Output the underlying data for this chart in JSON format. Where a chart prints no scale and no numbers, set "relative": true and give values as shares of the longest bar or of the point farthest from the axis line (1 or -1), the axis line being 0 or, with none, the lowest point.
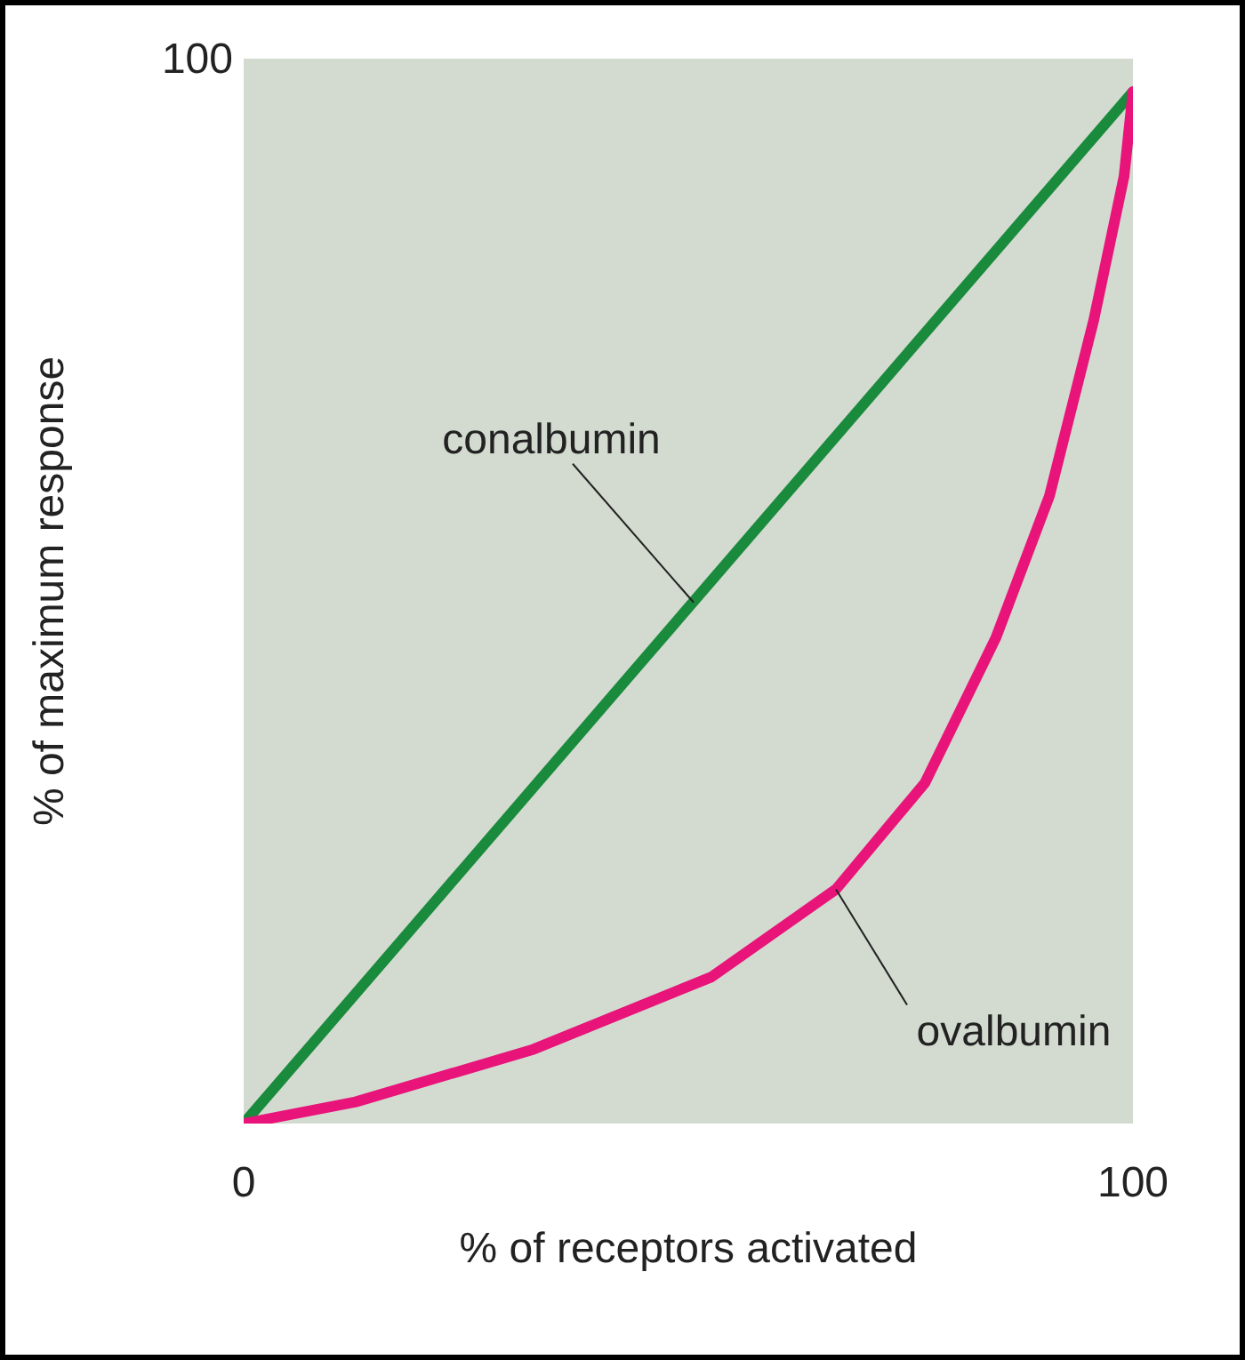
{
  "chart_data": {
    "type": "line",
    "relative": true,
    "xlabel": "% of receptors activated",
    "ylabel": "% of maximum response",
    "xlim": [
      0,
      100
    ],
    "xticks": [
      0,
      100
    ],
    "grid": false,
    "legend": false,
    "marker": "none",
    "line_style": "solid",
    "series": [
      {
        "color": "#1a8a3c",
        "x": [
          0,
          100
        ],
        "values": [
          0,
          1
        ]
      },
      {
        "color": "#e8147a",
        "x": [
          0,
          12.6,
          32.6,
          52.6,
          66.6,
          76.6,
          84.6,
          90.6,
          95.6,
          99,
          100
        ],
        "values": [
          0,
          0.021,
          0.072,
          0.142,
          0.227,
          0.33,
          0.471,
          0.608,
          0.779,
          0.918,
          1
        ]
      }
    ],
    "annotations": [
      {
        "text": "conalbumin",
        "x": 50.6,
        "y": 0.505
      },
      {
        "text": "ovalbumin",
        "x": 66.6,
        "y": 0.227
      },
      "100"
    ]
  }
}
